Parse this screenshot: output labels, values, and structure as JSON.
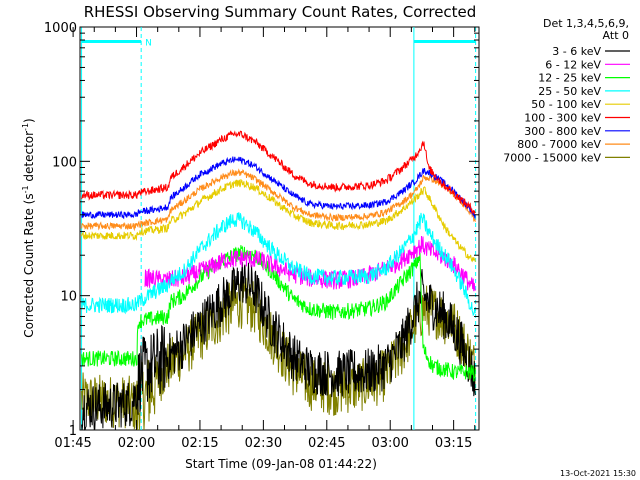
{
  "chart_data": {
    "type": "line",
    "title": "RHESSI Observing Summary Count Rates, Corrected",
    "xlabel": "Start Time (09-Jan-08 01:44:22)",
    "ylabel_main": "Corrected Count Rate (s",
    "ylabel_sup1": "-1",
    "ylabel_mid": " detector",
    "ylabel_sup2": "-1",
    "ylabel_end": ")",
    "y_scale": "log",
    "ylim": [
      1,
      1000
    ],
    "xlim_minutes": [
      1.63,
      96.0
    ],
    "x_tick_labels": [
      "01:45",
      "02:00",
      "02:15",
      "02:30",
      "02:45",
      "03:00",
      "03:15"
    ],
    "y_tick_labels": [
      "1",
      "10",
      "100",
      "1000"
    ],
    "legend_header_1": "Det 1,3,4,5,6,9,",
    "legend_header_2": "Att 0",
    "legend_position": "right",
    "grid": false,
    "night_marker": "N",
    "timestamp": "13-Oct-2021 15:30",
    "series": [
      {
        "name": "3 - 6 keV",
        "color": "#000000",
        "start": 2.0,
        "end": 95.2,
        "points": [
          [
            2,
            1.5
          ],
          [
            8,
            1.5
          ],
          [
            14,
            1.6
          ],
          [
            16,
            2.6
          ],
          [
            20,
            3.2
          ],
          [
            22.5,
            3.5
          ],
          [
            25,
            4
          ],
          [
            30,
            6
          ],
          [
            35,
            9
          ],
          [
            38,
            11
          ],
          [
            40,
            13
          ],
          [
            43,
            11
          ],
          [
            47,
            6
          ],
          [
            52,
            3.5
          ],
          [
            56,
            2.8
          ],
          [
            62,
            2.6
          ],
          [
            70,
            2.7
          ],
          [
            74,
            3
          ],
          [
            78,
            4.5
          ],
          [
            81,
            8
          ],
          [
            82.5,
            10.5
          ],
          [
            84,
            9
          ],
          [
            88,
            7
          ],
          [
            91,
            5
          ],
          [
            94,
            3
          ],
          [
            95.2,
            2.2
          ]
        ],
        "noise": 0.18,
        "gaps": [
          [
            15.0,
            22.5
          ]
        ]
      },
      {
        "name": "6 - 12 keV",
        "color": "#ff00ff",
        "start": 17.0,
        "end": 95.2,
        "points": [
          [
            17,
            13.5
          ],
          [
            22,
            13
          ],
          [
            26,
            13.5
          ],
          [
            32,
            16
          ],
          [
            36,
            18.5
          ],
          [
            40,
            19
          ],
          [
            44,
            18.5
          ],
          [
            48,
            16.5
          ],
          [
            52,
            14.5
          ],
          [
            56,
            13.5
          ],
          [
            62,
            13
          ],
          [
            68,
            13.5
          ],
          [
            72,
            15
          ],
          [
            76,
            17
          ],
          [
            80,
            21
          ],
          [
            82.5,
            24
          ],
          [
            84,
            22
          ],
          [
            88,
            19
          ],
          [
            91,
            16
          ],
          [
            94,
            12
          ],
          [
            95.2,
            11
          ]
        ],
        "noise": 0.07,
        "gaps": []
      },
      {
        "name": "12 - 25 keV",
        "color": "#00ff00",
        "start": 2.0,
        "end": 95.2,
        "points": [
          [
            2,
            3.4
          ],
          [
            15,
            3.4
          ],
          [
            15.5,
            6.5
          ],
          [
            20,
            6.8
          ],
          [
            22.5,
            7
          ],
          [
            23,
            9
          ],
          [
            26,
            10
          ],
          [
            30,
            13.5
          ],
          [
            35,
            18
          ],
          [
            38,
            20
          ],
          [
            40,
            21
          ],
          [
            43,
            20
          ],
          [
            47,
            15
          ],
          [
            52,
            9.5
          ],
          [
            56,
            8
          ],
          [
            62,
            7.5
          ],
          [
            70,
            8
          ],
          [
            74,
            9
          ],
          [
            78,
            13
          ],
          [
            81,
            17
          ],
          [
            82,
            20
          ],
          [
            82.8,
            4
          ],
          [
            85,
            3
          ],
          [
            90,
            2.7
          ],
          [
            94,
            2.7
          ],
          [
            95.2,
            2.6
          ]
        ],
        "noise": 0.06,
        "gaps": [
          [
            15.0,
            15.5
          ]
        ]
      },
      {
        "name": "25 - 50 keV",
        "color": "#00ffff",
        "start": 2.0,
        "end": 95.2,
        "points": [
          [
            2,
            8.5
          ],
          [
            15,
            8.5
          ],
          [
            15.5,
            9
          ],
          [
            20,
            11
          ],
          [
            22.5,
            12
          ],
          [
            23,
            13
          ],
          [
            26,
            15
          ],
          [
            30,
            22
          ],
          [
            35,
            32
          ],
          [
            38,
            37
          ],
          [
            40,
            36
          ],
          [
            43,
            30
          ],
          [
            47,
            22
          ],
          [
            52,
            16
          ],
          [
            56,
            14
          ],
          [
            62,
            13.5
          ],
          [
            70,
            14
          ],
          [
            74,
            16
          ],
          [
            78,
            22
          ],
          [
            81,
            30
          ],
          [
            82.5,
            38
          ],
          [
            84,
            30
          ],
          [
            86,
            24
          ],
          [
            89,
            18
          ],
          [
            92,
            12
          ],
          [
            95.2,
            7
          ]
        ],
        "noise": 0.06,
        "gaps": []
      },
      {
        "name": "50 - 100 keV",
        "color": "#e6cc00",
        "start": 2.0,
        "end": 95.2,
        "points": [
          [
            2,
            28
          ],
          [
            15,
            28
          ],
          [
            15.5,
            30
          ],
          [
            20,
            31
          ],
          [
            22.5,
            32
          ],
          [
            23,
            36
          ],
          [
            26,
            40
          ],
          [
            30,
            50
          ],
          [
            35,
            62
          ],
          [
            38,
            68
          ],
          [
            40,
            69
          ],
          [
            43,
            64
          ],
          [
            47,
            52
          ],
          [
            52,
            40
          ],
          [
            56,
            35
          ],
          [
            62,
            33
          ],
          [
            70,
            34
          ],
          [
            74,
            36
          ],
          [
            78,
            44
          ],
          [
            81,
            53
          ],
          [
            83,
            62
          ],
          [
            85,
            48
          ],
          [
            88,
            32
          ],
          [
            91,
            24
          ],
          [
            94,
            19
          ],
          [
            95.2,
            18
          ]
        ],
        "noise": 0.03,
        "gaps": []
      },
      {
        "name": "100 - 300 keV",
        "color": "#ff0000",
        "start": 2.0,
        "end": 95.2,
        "points": [
          [
            2,
            56
          ],
          [
            15,
            56
          ],
          [
            15.5,
            58
          ],
          [
            20,
            62
          ],
          [
            22.5,
            64
          ],
          [
            23,
            75
          ],
          [
            26,
            90
          ],
          [
            30,
            115
          ],
          [
            35,
            145
          ],
          [
            38,
            160
          ],
          [
            40,
            158
          ],
          [
            43,
            140
          ],
          [
            47,
            110
          ],
          [
            52,
            80
          ],
          [
            56,
            68
          ],
          [
            62,
            64
          ],
          [
            70,
            66
          ],
          [
            74,
            72
          ],
          [
            78,
            90
          ],
          [
            81,
            110
          ],
          [
            83,
            140
          ],
          [
            84,
            90
          ],
          [
            87,
            70
          ],
          [
            90,
            58
          ],
          [
            93,
            48
          ],
          [
            95.2,
            42
          ]
        ],
        "noise": 0.03,
        "gaps": []
      },
      {
        "name": "300 - 800 keV",
        "color": "#0000ff",
        "start": 2.0,
        "end": 95.2,
        "points": [
          [
            2,
            40
          ],
          [
            15,
            40
          ],
          [
            15.5,
            42
          ],
          [
            20,
            44
          ],
          [
            22.5,
            46
          ],
          [
            23,
            53
          ],
          [
            26,
            63
          ],
          [
            30,
            80
          ],
          [
            35,
            96
          ],
          [
            38,
            103
          ],
          [
            40,
            102
          ],
          [
            43,
            92
          ],
          [
            47,
            74
          ],
          [
            52,
            56
          ],
          [
            56,
            48
          ],
          [
            62,
            46
          ],
          [
            70,
            47
          ],
          [
            74,
            50
          ],
          [
            78,
            60
          ],
          [
            81,
            72
          ],
          [
            83,
            86
          ],
          [
            85,
            80
          ],
          [
            88,
            68
          ],
          [
            91,
            56
          ],
          [
            94,
            44
          ],
          [
            95.2,
            38
          ]
        ],
        "noise": 0.025,
        "gaps": []
      },
      {
        "name": "800 - 7000 keV",
        "color": "#ff8c1a",
        "start": 2.0,
        "end": 95.2,
        "points": [
          [
            2,
            33
          ],
          [
            15,
            33
          ],
          [
            15.5,
            34
          ],
          [
            20,
            36
          ],
          [
            22.5,
            37
          ],
          [
            23,
            43
          ],
          [
            26,
            50
          ],
          [
            30,
            62
          ],
          [
            35,
            76
          ],
          [
            38,
            82
          ],
          [
            40,
            82
          ],
          [
            43,
            74
          ],
          [
            47,
            60
          ],
          [
            52,
            46
          ],
          [
            56,
            40
          ],
          [
            62,
            38
          ],
          [
            70,
            39
          ],
          [
            74,
            42
          ],
          [
            78,
            50
          ],
          [
            81,
            60
          ],
          [
            83,
            76
          ],
          [
            85,
            74
          ],
          [
            88,
            64
          ],
          [
            91,
            54
          ],
          [
            94,
            42
          ],
          [
            95.2,
            36
          ]
        ],
        "noise": 0.025,
        "gaps": []
      },
      {
        "name": "7000 - 15000 keV",
        "color": "#808000",
        "start": 2.0,
        "end": 95.2,
        "points": [
          [
            2,
            1.7
          ],
          [
            14,
            1.6
          ],
          [
            15,
            1.4
          ],
          [
            20,
            2.4
          ],
          [
            22.5,
            3
          ],
          [
            25,
            3.5
          ],
          [
            30,
            5
          ],
          [
            35,
            7
          ],
          [
            38,
            8.5
          ],
          [
            40,
            9
          ],
          [
            43,
            8
          ],
          [
            47,
            5
          ],
          [
            52,
            2.8
          ],
          [
            56,
            2.2
          ],
          [
            62,
            2.0
          ],
          [
            70,
            2.2
          ],
          [
            74,
            2.6
          ],
          [
            78,
            4
          ],
          [
            81,
            6.5
          ],
          [
            83,
            8
          ],
          [
            86,
            7.5
          ],
          [
            90,
            6
          ],
          [
            93,
            4
          ],
          [
            95.2,
            2.8
          ]
        ],
        "noise": 0.2,
        "gaps": [
          [
            14.5,
            19.5
          ]
        ]
      }
    ],
    "vertical_markers_minutes": [
      2.0,
      16.1,
      80.6,
      95.2
    ],
    "night_bars_minutes": [
      [
        2.0,
        16.1
      ],
      [
        80.6,
        95.2
      ]
    ],
    "night_bar_level": 780
  }
}
